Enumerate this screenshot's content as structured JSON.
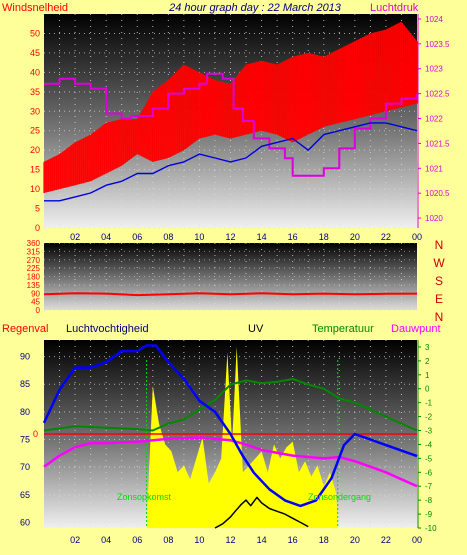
{
  "title": "24 hour graph day : 22 March 2013",
  "colors": {
    "page_bg": "#ffff99",
    "wind": "#ff0000",
    "wind_avg": "#0000dd",
    "pressure": "#dd00dd",
    "direction": "#ff0000",
    "humidity": "#0000ff",
    "temperature": "#008800",
    "dewpoint": "#ff00ff",
    "uv": "#ffff00",
    "rain": "#ff0000",
    "solar_markers": "#00dd00",
    "axis_labels": "#000080"
  },
  "chart_data": [
    {
      "type": "line",
      "name": "wind-pressure",
      "y_label_left": "Windsnelheid",
      "y_label_right": "Luchtdruk",
      "x_ticks": [
        "02",
        "04",
        "06",
        "08",
        "10",
        "12",
        "14",
        "16",
        "18",
        "20",
        "22",
        "00"
      ],
      "x_range": [
        0,
        24
      ],
      "ylim_left": [
        0,
        55
      ],
      "left_ticks": [
        0,
        5,
        10,
        15,
        20,
        25,
        30,
        35,
        40,
        45,
        50
      ],
      "ylim_right": [
        1019.8,
        1024.1
      ],
      "right_ticks": [
        "1020",
        "1020.5",
        "1021",
        "1021.5",
        "1022",
        "1022.5",
        "1023",
        "1023.5",
        "1024"
      ],
      "series": [
        {
          "key": "gust",
          "axis": "left",
          "kind": "band",
          "x": [
            0,
            1,
            2,
            3,
            4,
            5,
            6,
            7,
            8,
            9,
            10,
            11,
            12,
            13,
            14,
            15,
            16,
            17,
            18,
            19,
            20,
            21,
            22,
            23,
            24
          ],
          "low": [
            9,
            10,
            11,
            12,
            14,
            16,
            19,
            17,
            18,
            20,
            23,
            24,
            23,
            24,
            25,
            24,
            22,
            24,
            26,
            27,
            28,
            29,
            30,
            31,
            32
          ],
          "high": [
            17,
            19,
            22,
            24,
            27,
            28,
            28,
            35,
            38,
            42,
            40,
            38,
            37,
            42,
            43,
            42,
            44,
            45,
            44,
            46,
            48,
            50,
            51,
            53,
            48
          ]
        },
        {
          "key": "average",
          "axis": "left",
          "x": [
            0,
            1,
            2,
            3,
            4,
            5,
            6,
            7,
            8,
            9,
            10,
            11,
            12,
            13,
            14,
            15,
            16,
            17,
            18,
            19,
            20,
            21,
            22,
            23,
            24
          ],
          "y": [
            7,
            7,
            8,
            9,
            11,
            12,
            14,
            14,
            16,
            17,
            19,
            18,
            17,
            18,
            21,
            22,
            23,
            20,
            24,
            25,
            26,
            27,
            27,
            26,
            25
          ]
        },
        {
          "key": "pressure",
          "axis": "right",
          "x": [
            0,
            1,
            2,
            3,
            4,
            5,
            5.6,
            7,
            8,
            9,
            10,
            10.5,
            11.5,
            12.2,
            12.8,
            13.5,
            14.5,
            15.5,
            16,
            17,
            18,
            19,
            20,
            21,
            22,
            23,
            24
          ],
          "y": [
            1022.7,
            1022.8,
            1022.7,
            1022.6,
            1022.1,
            1022.0,
            1022.05,
            1022.2,
            1022.5,
            1022.6,
            1022.7,
            1022.9,
            1022.8,
            1022.2,
            1021.95,
            1021.6,
            1021.4,
            1021.2,
            1020.85,
            1020.85,
            1021.0,
            1021.4,
            1021.8,
            1022.0,
            1022.3,
            1022.4,
            1022.5
          ]
        }
      ]
    },
    {
      "type": "line",
      "name": "wind-direction",
      "right_labels": [
        "N",
        "W",
        "S",
        "E",
        "N"
      ],
      "ylim": [
        0,
        360
      ],
      "left_ticks": [
        0,
        45,
        90,
        135,
        180,
        225,
        270,
        315,
        360
      ],
      "x_range": [
        0,
        24
      ],
      "x": [
        0,
        2,
        4,
        6,
        8,
        10,
        12,
        14,
        16,
        18,
        20,
        22,
        24
      ],
      "y": [
        85,
        90,
        88,
        80,
        85,
        90,
        85,
        90,
        85,
        88,
        85,
        87,
        88
      ]
    },
    {
      "type": "line",
      "name": "humidity-temperature",
      "labels": {
        "rain": "Regenval",
        "humidity": "Luchtvochtigheid",
        "uv": "UV",
        "temperature": "Temperatuur",
        "dewpoint": "Dauwpunt",
        "sunrise": "Zonsopkomst",
        "sunset": "Zonsondergang"
      },
      "x_ticks": [
        "02",
        "04",
        "06",
        "08",
        "10",
        "12",
        "14",
        "16",
        "18",
        "20",
        "22",
        "00"
      ],
      "x_range": [
        0,
        24
      ],
      "ylim_left": [
        59,
        93
      ],
      "left_ticks": [
        60,
        65,
        70,
        75,
        80,
        85,
        90
      ],
      "rain_zero_label": "0",
      "ylim_right": [
        -10,
        3.5
      ],
      "right_ticks": [
        3,
        2,
        1,
        0,
        -1,
        -2,
        -3,
        -4,
        -5,
        -6,
        -7,
        -8,
        -9,
        -10
      ],
      "sunrise_hour": 6.6,
      "sunset_hour": 18.9,
      "series": [
        {
          "key": "humidity",
          "axis": "left",
          "x": [
            0,
            1,
            2,
            3,
            4,
            5,
            6,
            6.6,
            7.2,
            8,
            9,
            10,
            11,
            12,
            12.8,
            13.5,
            14.5,
            15.5,
            16.5,
            17.5,
            18.5,
            19.3,
            20,
            21,
            22,
            23,
            24
          ],
          "y": [
            78,
            84,
            88,
            88,
            89,
            91,
            91,
            92,
            92,
            89,
            86,
            82,
            80,
            76,
            72,
            69,
            66,
            64,
            63,
            64,
            68,
            74,
            76,
            75,
            74,
            73,
            72
          ]
        },
        {
          "key": "temperature",
          "axis": "right",
          "x": [
            0,
            2,
            4,
            6,
            7,
            8,
            9,
            10,
            11,
            12,
            13,
            14,
            15,
            16,
            17,
            18,
            19,
            20,
            21,
            22,
            23,
            24
          ],
          "y": [
            -3.0,
            -2.7,
            -2.8,
            -2.9,
            -3.0,
            -2.5,
            -2.2,
            -1.5,
            -0.8,
            0.3,
            0.6,
            0.4,
            0.5,
            0.7,
            0.3,
            0.0,
            -0.7,
            -1.0,
            -1.5,
            -2.0,
            -2.5,
            -3.0
          ]
        },
        {
          "key": "dewpoint",
          "axis": "right",
          "x": [
            0,
            1,
            2,
            3,
            4,
            6,
            8,
            10,
            12,
            13,
            14,
            16,
            18,
            19,
            20,
            21,
            22,
            23,
            24
          ],
          "y": [
            -5.6,
            -4.8,
            -4.2,
            -3.9,
            -3.9,
            -3.8,
            -3.6,
            -3.5,
            -3.7,
            -4.0,
            -4.4,
            -4.8,
            -5.0,
            -4.9,
            -5.2,
            -5.6,
            -6.0,
            -6.5,
            -7.0
          ]
        },
        {
          "key": "uv",
          "axis": "right",
          "kind": "area",
          "x": [
            6.6,
            7.0,
            7.4,
            7.8,
            8.2,
            8.6,
            9.0,
            9.4,
            9.8,
            10.2,
            10.6,
            11.0,
            11.4,
            11.8,
            12.1,
            12.4,
            12.8,
            13.2,
            13.6,
            14.0,
            14.4,
            14.8,
            15.2,
            15.6,
            16.0,
            16.4,
            16.8,
            17.2,
            17.6,
            18.0,
            18.4,
            18.8,
            18.9
          ],
          "y": [
            -10,
            0.2,
            -2.5,
            -4.0,
            -4.5,
            -6.0,
            -5.5,
            -6.5,
            -5.0,
            -3.5,
            -6.8,
            -6.0,
            -5.0,
            2.6,
            -4.0,
            3.0,
            -6.0,
            -5.5,
            -5.0,
            -4.5,
            -6.0,
            -4.0,
            -5.0,
            -4.2,
            -3.8,
            -6.0,
            -5.2,
            -6.3,
            -5.5,
            -7.0,
            -6.0,
            -7.5,
            -10
          ]
        },
        {
          "key": "solar",
          "axis": "right",
          "x": [
            11.0,
            11.5,
            12.0,
            12.3,
            12.7,
            13.0,
            13.3,
            13.7,
            14.0,
            14.5,
            15.0,
            15.5,
            16.0,
            16.5,
            17.0
          ],
          "y": [
            -10.0,
            -9.7,
            -9.2,
            -8.8,
            -8.3,
            -8.0,
            -8.4,
            -7.8,
            -8.2,
            -8.6,
            -8.8,
            -9.0,
            -9.3,
            -9.6,
            -9.9
          ]
        }
      ]
    }
  ]
}
